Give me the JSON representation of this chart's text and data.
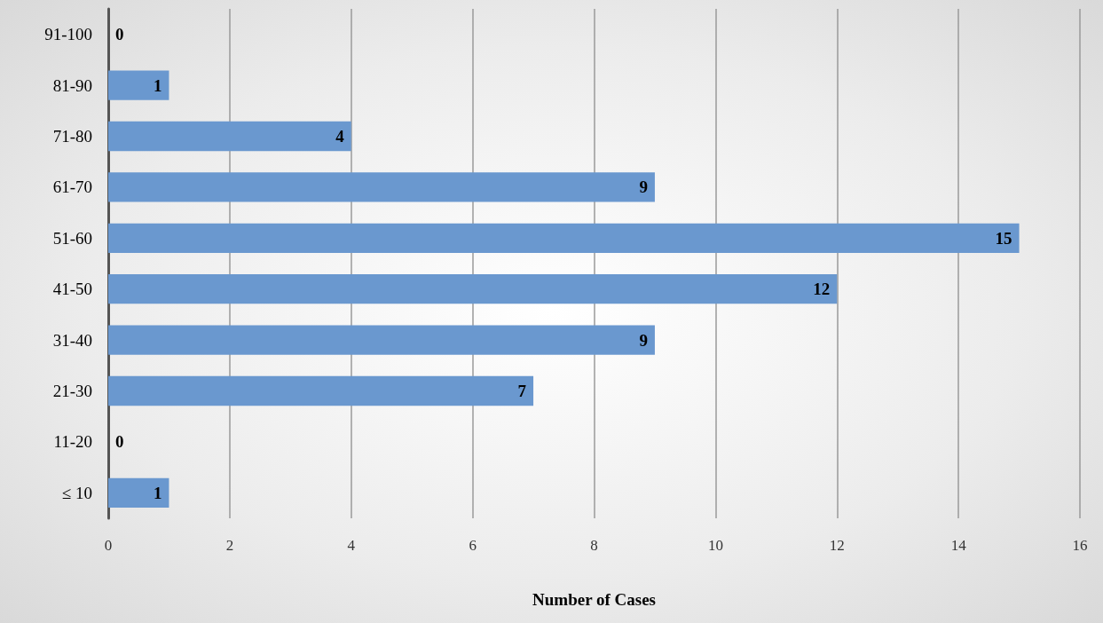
{
  "chart_data": {
    "type": "bar",
    "orientation": "horizontal",
    "xlabel": "Number of Cases",
    "categories": [
      "91-100",
      "81-90",
      "71-80",
      "61-70",
      "51-60",
      "41-50",
      "31-40",
      "21-30",
      "11-20",
      "≤ 10"
    ],
    "values": [
      0,
      1,
      4,
      9,
      15,
      12,
      9,
      7,
      0,
      1
    ],
    "color": "#6a98cf",
    "xlim": [
      0,
      16
    ],
    "xticks": [
      0,
      2,
      4,
      6,
      8,
      10,
      12,
      14,
      16
    ],
    "grid": "x",
    "data_labels": true
  }
}
